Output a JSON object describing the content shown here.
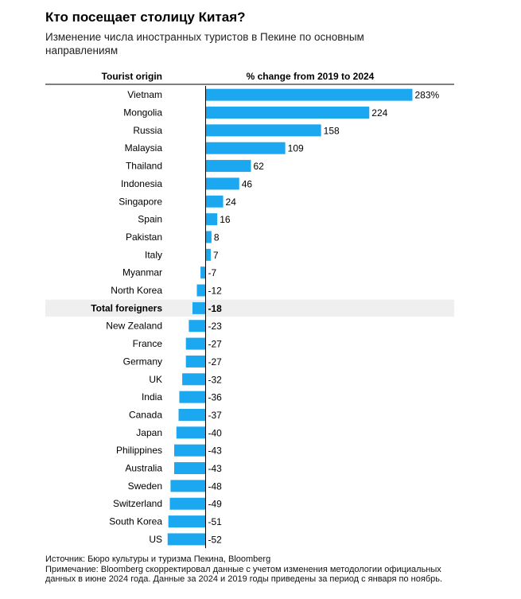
{
  "title": "Кто посещает столицу Китая?",
  "subtitle": "Изменение числа иностранных туристов в Пекине по основным направлениям",
  "colors": {
    "bar": "#1ba8f0",
    "highlight_row": "#efefef"
  },
  "chart_data": {
    "type": "bar",
    "orientation": "horizontal",
    "category_header": "Tourist origin",
    "value_header": "% change from 2019 to 2024",
    "first_label_suffix": "%",
    "highlight_category": "Total foreigners",
    "categories": [
      "Vietnam",
      "Mongolia",
      "Russia",
      "Malaysia",
      "Thailand",
      "Indonesia",
      "Singapore",
      "Spain",
      "Pakistan",
      "Italy",
      "Myanmar",
      "North Korea",
      "Total foreigners",
      "New Zealand",
      "France",
      "Germany",
      "UK",
      "India",
      "Canada",
      "Japan",
      "Philippines",
      "Australia",
      "Sweden",
      "Switzerland",
      "South Korea",
      "US"
    ],
    "values": [
      283,
      224,
      158,
      109,
      62,
      46,
      24,
      16,
      8,
      7,
      -7,
      -12,
      -18,
      -23,
      -27,
      -27,
      -32,
      -36,
      -37,
      -40,
      -43,
      -43,
      -48,
      -49,
      -51,
      -52
    ],
    "xlim": [
      -52,
      283
    ]
  },
  "source": "Источник: Бюро культуры и туризма Пекина, Bloomberg",
  "note": "Примечание: Bloomberg скорректировал данные с учетом изменения методологии официальных данных в июне 2024 года. Данные за 2024 и 2019 годы приведены за период с января по ноябрь."
}
